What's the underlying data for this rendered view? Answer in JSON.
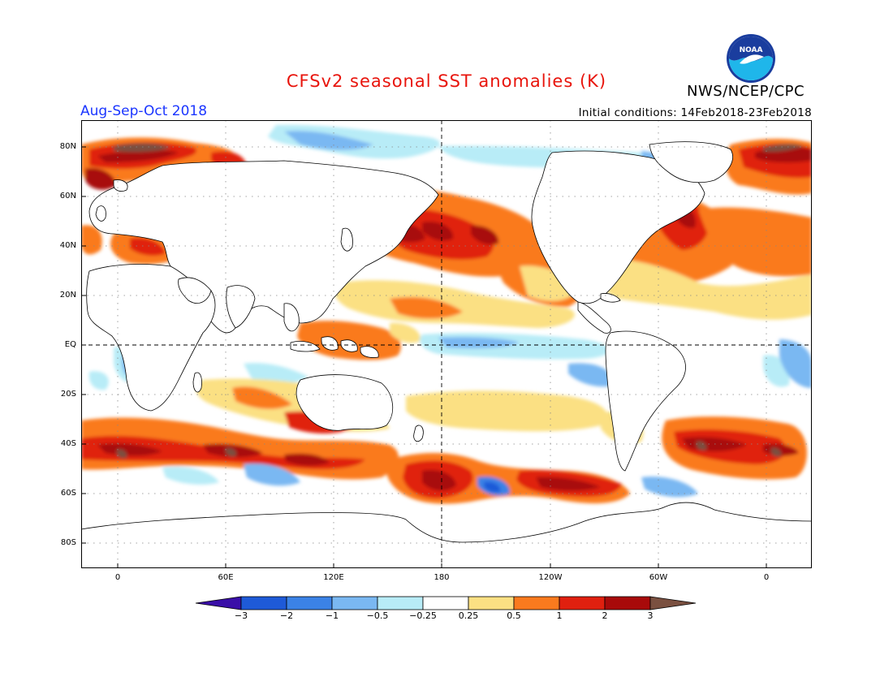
{
  "header": {
    "title": "CFSv2 seasonal SST anomalies (K)",
    "agency": "NWS/NCEP/CPC",
    "season": "Aug-Sep-Oct 2018",
    "initial_conditions": "Initial conditions: 14Feb2018-23Feb2018",
    "logo_text": "NOAA"
  },
  "axes": {
    "lat_labels": [
      "80N",
      "60N",
      "40N",
      "20N",
      "EQ",
      "20S",
      "40S",
      "60S",
      "80S"
    ],
    "lon_labels": [
      "0",
      "60E",
      "120E",
      "180",
      "120W",
      "60W",
      "0"
    ]
  },
  "colorbar": {
    "labels": [
      "−3",
      "−2",
      "−1",
      "−0.5",
      "−0.25",
      "0.25",
      "0.5",
      "1",
      "2",
      "3"
    ],
    "colors": [
      "#3a0fa8",
      "#1e5ad8",
      "#3b82e6",
      "#7ab8f2",
      "#b8ecf7",
      "#ffffff",
      "#fbe083",
      "#fa7a1e",
      "#e0200f",
      "#a80a0a",
      "#7a5040"
    ]
  }
}
